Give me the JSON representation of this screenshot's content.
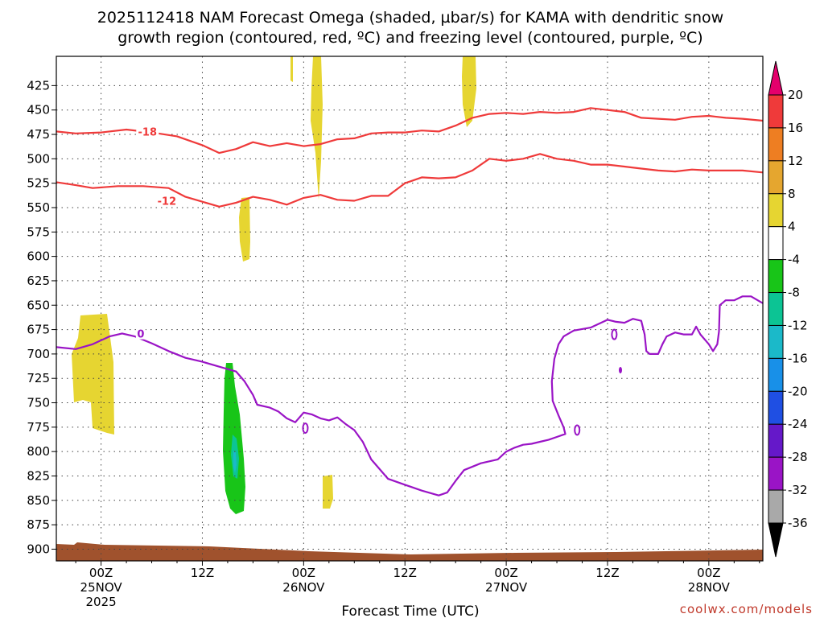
{
  "chart_data": {
    "type": "time-height-cross-section",
    "title_line1": "2025112418 NAM Forecast Omega (shaded, µbar/s) for KAMA with dendritic snow",
    "title_line2": "growth region (contoured, red, ºC) and freezing level (contoured, purple, ºC)",
    "xlabel": "Forecast Time (UTC)",
    "credit": "coolwx.com/models",
    "x_range_hours": [
      -5.3,
      78.4
    ],
    "y_range_mb": [
      395,
      912
    ],
    "y_ticks": [
      "425",
      "450",
      "475",
      "500",
      "525",
      "550",
      "575",
      "600",
      "625",
      "650",
      "675",
      "700",
      "725",
      "750",
      "775",
      "800",
      "825",
      "850",
      "875",
      "900"
    ],
    "x_ticks": [
      {
        "hour": 0,
        "line1": "00Z",
        "line2": "25NOV",
        "line3": "2025"
      },
      {
        "hour": 12,
        "line1": "12Z",
        "line2": "",
        "line3": ""
      },
      {
        "hour": 24,
        "line1": "00Z",
        "line2": "26NOV",
        "line3": ""
      },
      {
        "hour": 36,
        "line1": "12Z",
        "line2": "",
        "line3": ""
      },
      {
        "hour": 48,
        "line1": "00Z",
        "line2": "27NOV",
        "line3": ""
      },
      {
        "hour": 60,
        "line1": "12Z",
        "line2": "",
        "line3": ""
      },
      {
        "hour": 72,
        "line1": "00Z",
        "line2": "28NOV",
        "line3": ""
      }
    ],
    "colorbar": {
      "labels": [
        "20",
        "16",
        "12",
        "8",
        "4",
        "-4",
        "-8",
        "-12",
        "-16",
        "-20",
        "-24",
        "-28",
        "-32",
        "-36"
      ],
      "top_arrow_color": "#e4006c",
      "bottom_arrow_color": "#000000",
      "colors": [
        "#ef3a3a",
        "#ee7e22",
        "#e5a62f",
        "#e6d531",
        "#ffffff",
        "#18c518",
        "#0cc494",
        "#1bb9c9",
        "#1890e8",
        "#1f4fe3",
        "#6518c9",
        "#9a14c6",
        "#a9a9a9"
      ]
    },
    "ground_color": "#a0522d",
    "red_contours": [
      {
        "label": "-18",
        "label_hour": 5.5,
        "label_mb": 473,
        "points": [
          [
            -5.3,
            472
          ],
          [
            -3,
            474
          ],
          [
            0,
            473
          ],
          [
            3,
            470
          ],
          [
            6,
            473
          ],
          [
            9,
            477
          ],
          [
            12,
            486
          ],
          [
            14,
            494
          ],
          [
            16,
            490
          ],
          [
            18,
            483
          ],
          [
            20,
            487
          ],
          [
            22,
            484
          ],
          [
            24,
            487
          ],
          [
            26,
            485
          ],
          [
            28,
            480
          ],
          [
            30,
            479
          ],
          [
            32,
            474
          ],
          [
            34,
            473
          ],
          [
            36,
            473
          ],
          [
            38,
            471
          ],
          [
            40,
            472
          ],
          [
            42,
            466
          ],
          [
            44,
            458
          ],
          [
            46,
            454
          ],
          [
            48,
            453
          ],
          [
            50,
            454
          ],
          [
            52,
            452
          ],
          [
            54,
            453
          ],
          [
            56,
            452
          ],
          [
            58,
            448
          ],
          [
            60,
            450
          ],
          [
            62,
            452
          ],
          [
            64,
            458
          ],
          [
            66,
            459
          ],
          [
            68,
            460
          ],
          [
            70,
            457
          ],
          [
            72,
            456
          ],
          [
            74,
            458
          ],
          [
            76,
            459
          ],
          [
            78.4,
            461
          ]
        ]
      },
      {
        "label": "-12",
        "label_hour": 7.8,
        "label_mb": 544,
        "points": [
          [
            -5.3,
            524
          ],
          [
            -3,
            527
          ],
          [
            -1,
            530
          ],
          [
            2,
            528
          ],
          [
            5,
            528
          ],
          [
            8,
            530
          ],
          [
            10,
            539
          ],
          [
            12,
            544
          ],
          [
            14,
            549
          ],
          [
            16,
            545
          ],
          [
            18,
            539
          ],
          [
            20,
            542
          ],
          [
            22,
            547
          ],
          [
            24,
            540
          ],
          [
            26,
            537
          ],
          [
            28,
            542
          ],
          [
            30,
            543
          ],
          [
            32,
            538
          ],
          [
            34,
            538
          ],
          [
            36,
            525
          ],
          [
            38,
            519
          ],
          [
            40,
            520
          ],
          [
            42,
            519
          ],
          [
            44,
            512
          ],
          [
            46,
            500
          ],
          [
            48,
            502
          ],
          [
            50,
            500
          ],
          [
            52,
            495
          ],
          [
            54,
            500
          ],
          [
            56,
            502
          ],
          [
            58,
            506
          ],
          [
            60,
            506
          ],
          [
            62,
            508
          ],
          [
            64,
            510
          ],
          [
            66,
            512
          ],
          [
            68,
            513
          ],
          [
            70,
            511
          ],
          [
            72,
            512
          ],
          [
            74,
            512
          ],
          [
            76,
            512
          ],
          [
            78.4,
            514
          ]
        ]
      }
    ],
    "purple_contours": [
      {
        "label": "0",
        "label_hour": 4.7,
        "label_mb": 680,
        "points": [
          [
            -5.3,
            693
          ],
          [
            -3,
            695
          ],
          [
            -1,
            690
          ],
          [
            1,
            682
          ],
          [
            2.5,
            679
          ],
          [
            4,
            682
          ],
          [
            6,
            689
          ],
          [
            8,
            697
          ],
          [
            10,
            704
          ],
          [
            12,
            708
          ],
          [
            14,
            713
          ],
          [
            16,
            718
          ],
          [
            17,
            728
          ],
          [
            18,
            742
          ],
          [
            18.5,
            752
          ],
          [
            20,
            755
          ],
          [
            21,
            759
          ],
          [
            22,
            766
          ],
          [
            23,
            770
          ],
          [
            24,
            760
          ],
          [
            25,
            762
          ],
          [
            26,
            766
          ],
          [
            27,
            768
          ],
          [
            28,
            765
          ],
          [
            29,
            772
          ],
          [
            30,
            778
          ],
          [
            31,
            790
          ],
          [
            32,
            808
          ],
          [
            33,
            818
          ],
          [
            34,
            828
          ],
          [
            36,
            834
          ],
          [
            38,
            840
          ],
          [
            40,
            845
          ],
          [
            41,
            842
          ],
          [
            42,
            830
          ],
          [
            43,
            819
          ],
          [
            45,
            812
          ],
          [
            47,
            808
          ],
          [
            48,
            800
          ],
          [
            49,
            796
          ],
          [
            50,
            793
          ],
          [
            51,
            792
          ],
          [
            52,
            790
          ],
          [
            53,
            788
          ],
          [
            54,
            785
          ],
          [
            55,
            782
          ],
          [
            54.8,
            775
          ],
          [
            54.2,
            763
          ],
          [
            53.5,
            748
          ],
          [
            53.4,
            728
          ],
          [
            53.7,
            705
          ],
          [
            54.2,
            690
          ],
          [
            54.8,
            682
          ],
          [
            56,
            676
          ],
          [
            58,
            673
          ],
          [
            60,
            665
          ],
          [
            61,
            667
          ],
          [
            62,
            668
          ],
          [
            63,
            664
          ],
          [
            64,
            666
          ],
          [
            64.4,
            680
          ],
          [
            64.6,
            697
          ],
          [
            65,
            700
          ],
          [
            66,
            700
          ],
          [
            66.5,
            690
          ],
          [
            67,
            682
          ],
          [
            68,
            678
          ],
          [
            69,
            680
          ],
          [
            70,
            680
          ],
          [
            70.5,
            672
          ],
          [
            71,
            680
          ],
          [
            72,
            690
          ],
          [
            72.5,
            697
          ],
          [
            73,
            690
          ],
          [
            73.2,
            677
          ],
          [
            73.3,
            650
          ],
          [
            74,
            645
          ],
          [
            75,
            645
          ],
          [
            76,
            641
          ],
          [
            77,
            641
          ],
          [
            78,
            646
          ],
          [
            78.4,
            648
          ]
        ]
      }
    ]
  }
}
